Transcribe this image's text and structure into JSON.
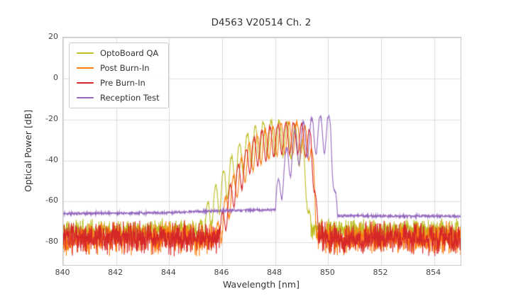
{
  "figure": {
    "title": "D4563 V20514 Ch. 2",
    "xlabel": "Wavelength [nm]",
    "ylabel": "Optical Power [dB]"
  },
  "chart_data": {
    "type": "line",
    "title": "D4563 V20514 Ch. 2",
    "xlabel": "Wavelength [nm]",
    "ylabel": "Optical Power [dB]",
    "xlim": [
      840,
      855
    ],
    "ylim": [
      -91,
      20
    ],
    "xticks": [
      840,
      842,
      844,
      846,
      848,
      850,
      852,
      854
    ],
    "yticks": [
      20,
      0,
      -20,
      -40,
      -60,
      -80
    ],
    "grid": true,
    "legend_position": "upper left",
    "series": [
      {
        "name": "OptoBoard QA",
        "color": "#bcbd22",
        "baseline": [
          [
            840,
            -74
          ],
          [
            855,
            -74
          ]
        ],
        "baseline_noise": 6,
        "envelope": [
          [
            845.15,
            -70
          ],
          [
            845.6,
            -56
          ],
          [
            846.0,
            -46
          ],
          [
            846.4,
            -37
          ],
          [
            846.8,
            -29
          ],
          [
            847.2,
            -24
          ],
          [
            847.6,
            -21
          ],
          [
            848.0,
            -20.5
          ],
          [
            848.4,
            -21
          ],
          [
            848.8,
            -23
          ],
          [
            849.0,
            -28
          ],
          [
            849.2,
            -45
          ],
          [
            849.35,
            -70
          ]
        ],
        "ripple_period": 0.3,
        "ripple_depth": 17,
        "ripple_phase": 0.05,
        "seed": 11
      },
      {
        "name": "Post Burn-In",
        "color": "#ff7f0e",
        "baseline": [
          [
            840,
            -78
          ],
          [
            855,
            -78
          ]
        ],
        "baseline_noise": 9,
        "envelope": [
          [
            845.8,
            -72
          ],
          [
            846.2,
            -55
          ],
          [
            846.6,
            -42
          ],
          [
            847.0,
            -32
          ],
          [
            847.4,
            -27
          ],
          [
            847.8,
            -24
          ],
          [
            848.2,
            -22
          ],
          [
            848.6,
            -21.5
          ],
          [
            849.0,
            -22
          ],
          [
            849.3,
            -25
          ],
          [
            849.45,
            -40
          ],
          [
            849.6,
            -72
          ]
        ],
        "ripple_period": 0.3,
        "ripple_depth": 15,
        "ripple_phase": 0.12,
        "seed": 22
      },
      {
        "name": "Pre Burn-In",
        "color": "#d62728",
        "baseline": [
          [
            840,
            -78
          ],
          [
            855,
            -78
          ]
        ],
        "baseline_noise": 9,
        "envelope": [
          [
            845.85,
            -72
          ],
          [
            846.25,
            -54
          ],
          [
            846.65,
            -41
          ],
          [
            847.05,
            -31
          ],
          [
            847.45,
            -26
          ],
          [
            847.85,
            -23.5
          ],
          [
            848.25,
            -22
          ],
          [
            848.65,
            -21.5
          ],
          [
            849.05,
            -22.5
          ],
          [
            849.35,
            -26
          ],
          [
            849.5,
            -45
          ],
          [
            849.62,
            -72
          ]
        ],
        "ripple_period": 0.3,
        "ripple_depth": 15,
        "ripple_phase": 0.0,
        "seed": 33
      },
      {
        "name": "Reception Test",
        "color": "#9467bd",
        "baseline": [
          [
            840,
            -66
          ],
          [
            844,
            -65.5
          ],
          [
            846,
            -64.5
          ],
          [
            848,
            -64
          ],
          [
            849,
            -64
          ],
          [
            850.3,
            -67
          ],
          [
            855,
            -67.3
          ]
        ],
        "baseline_noise": 0.8,
        "envelope": [
          [
            847.9,
            -62
          ],
          [
            848.3,
            -38
          ],
          [
            848.7,
            -26
          ],
          [
            849.1,
            -21
          ],
          [
            849.5,
            -19
          ],
          [
            849.9,
            -18
          ],
          [
            850.1,
            -18.5
          ],
          [
            850.25,
            -45
          ],
          [
            850.35,
            -66
          ]
        ],
        "ripple_period": 0.32,
        "ripple_depth": 18,
        "ripple_phase": 0.1,
        "seed": 44
      }
    ]
  }
}
